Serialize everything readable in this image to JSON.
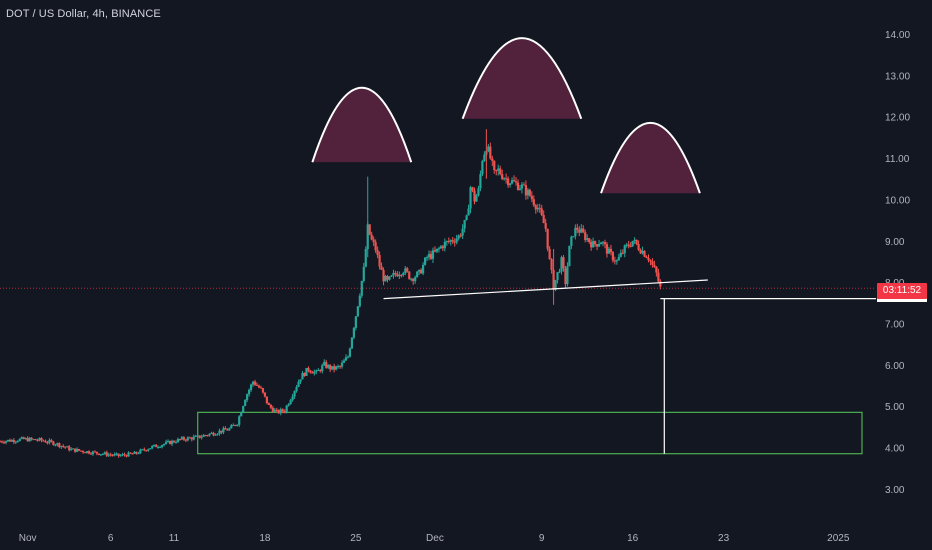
{
  "header": {
    "title": "DOT / US Dollar, 4h, BINANCE"
  },
  "price_tag": {
    "countdown": "03:11:52",
    "color": "#f23645"
  },
  "colors": {
    "background": "#131722",
    "up": "#26a69a",
    "down": "#ef5350",
    "axis_text": "#b2b5be",
    "hump_fill": "#5a2440",
    "target_box": "#4caf50"
  },
  "chart_data": {
    "type": "candlestick",
    "title": "DOT / US Dollar, 4h, BINANCE",
    "y_ticks": [
      "14.00",
      "13.00",
      "12.00",
      "11.00",
      "10.00",
      "9.00",
      "8.00",
      "7.00",
      "6.00",
      "5.00",
      "4.00",
      "3.00"
    ],
    "ylim": [
      2.5,
      14.6
    ],
    "x_ticks": [
      "Nov",
      "6",
      "11",
      "18",
      "25",
      "Dec",
      "9",
      "16",
      "23",
      "2025"
    ],
    "current_price": 7.85,
    "price_path": [
      [
        0,
        4.15
      ],
      [
        6,
        4.2
      ],
      [
        10,
        4.18
      ],
      [
        14,
        4.1
      ],
      [
        18,
        3.95
      ],
      [
        22,
        3.9
      ],
      [
        26,
        3.85
      ],
      [
        30,
        3.8
      ],
      [
        34,
        3.85
      ],
      [
        38,
        4.0
      ],
      [
        42,
        4.1
      ],
      [
        46,
        4.2
      ],
      [
        50,
        4.25
      ],
      [
        54,
        4.35
      ],
      [
        58,
        4.45
      ],
      [
        60,
        4.6
      ],
      [
        62,
        5.2
      ],
      [
        64,
        5.6
      ],
      [
        66,
        5.4
      ],
      [
        68,
        5.0
      ],
      [
        70,
        4.85
      ],
      [
        72,
        4.9
      ],
      [
        74,
        5.3
      ],
      [
        76,
        5.7
      ],
      [
        78,
        5.9
      ],
      [
        80,
        5.8
      ],
      [
        82,
        6.0
      ],
      [
        84,
        5.9
      ],
      [
        86,
        5.95
      ],
      [
        88,
        6.2
      ],
      [
        90,
        7.2
      ],
      [
        92,
        8.3
      ],
      [
        93,
        9.3
      ],
      [
        94,
        9.0
      ],
      [
        95,
        8.8
      ],
      [
        96,
        8.4
      ],
      [
        97,
        8.1
      ],
      [
        98,
        8.0
      ],
      [
        100,
        8.2
      ],
      [
        102,
        8.3
      ],
      [
        104,
        8.1
      ],
      [
        106,
        8.2
      ],
      [
        108,
        8.6
      ],
      [
        110,
        8.7
      ],
      [
        112,
        8.9
      ],
      [
        114,
        9.0
      ],
      [
        116,
        9.1
      ],
      [
        118,
        9.5
      ],
      [
        119,
        10.3
      ],
      [
        120,
        10.0
      ],
      [
        121,
        10.2
      ],
      [
        122,
        11.0
      ],
      [
        123,
        11.3
      ],
      [
        124,
        11.0
      ],
      [
        125,
        10.6
      ],
      [
        126,
        10.7
      ],
      [
        128,
        10.5
      ],
      [
        130,
        10.4
      ],
      [
        132,
        10.3
      ],
      [
        134,
        10.1
      ],
      [
        136,
        9.8
      ],
      [
        138,
        9.3
      ],
      [
        139,
        8.5
      ],
      [
        140,
        7.9
      ],
      [
        141,
        8.2
      ],
      [
        142,
        8.5
      ],
      [
        143,
        8.0
      ],
      [
        144,
        8.8
      ],
      [
        145,
        9.2
      ],
      [
        146,
        9.3
      ],
      [
        148,
        9.1
      ],
      [
        150,
        8.9
      ],
      [
        152,
        9.0
      ],
      [
        154,
        8.7
      ],
      [
        156,
        8.5
      ],
      [
        158,
        8.8
      ],
      [
        160,
        9.0
      ],
      [
        162,
        8.8
      ],
      [
        164,
        8.6
      ],
      [
        166,
        8.2
      ],
      [
        167,
        7.85
      ]
    ],
    "shapes": [
      {
        "type": "arc",
        "label": "left-shoulder",
        "x_start": 79,
        "x_end": 104,
        "base": 10.9,
        "peak": 12.7
      },
      {
        "type": "arc",
        "label": "head",
        "x_start": 117,
        "x_end": 147,
        "base": 11.95,
        "peak": 13.9
      },
      {
        "type": "arc",
        "label": "right-shoulder",
        "x_start": 152,
        "x_end": 177,
        "base": 10.15,
        "peak": 11.85
      }
    ],
    "neckline": {
      "x_start": 97,
      "y_start": 7.6,
      "x_end": 179,
      "y_end": 8.05
    },
    "horizontal_line": {
      "y": 7.6,
      "x_start": 167
    },
    "projection_line": {
      "x": 168,
      "y_top": 7.6,
      "y_bottom": 3.85
    },
    "target_zone": {
      "x_start": 50,
      "x_end": 218,
      "y_top": 4.85,
      "y_bottom": 3.85
    }
  }
}
